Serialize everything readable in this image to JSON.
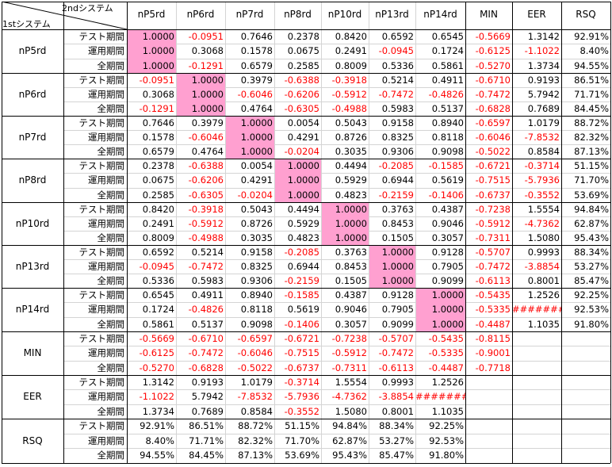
{
  "corner": {
    "second": "2ndシステム",
    "first": "1stシステム"
  },
  "columns": [
    "nP5rd",
    "nP6rd",
    "nP7rd",
    "nP8rd",
    "nP10rd",
    "nP13rd",
    "nP14rd",
    "MIN",
    "EER",
    "RSQ"
  ],
  "groups": [
    {
      "name": "nP5rd",
      "rows": [
        {
          "label": "テスト期間",
          "values": [
            "1.0000",
            "-0.0951",
            "0.7646",
            "0.2378",
            "0.8420",
            "0.6592",
            "0.6545",
            "-0.5669",
            "1.3142",
            "92.91%"
          ]
        },
        {
          "label": "運用期間",
          "values": [
            "1.0000",
            "0.3068",
            "0.1578",
            "0.0675",
            "0.2491",
            "-0.0945",
            "0.1724",
            "-0.6125",
            "-1.1022",
            "8.40%"
          ]
        },
        {
          "label": "全期間",
          "values": [
            "1.0000",
            "-0.1291",
            "0.6579",
            "0.2585",
            "0.8009",
            "0.5336",
            "0.5861",
            "-0.5270",
            "1.3734",
            "94.55%"
          ]
        }
      ]
    },
    {
      "name": "nP6rd",
      "rows": [
        {
          "label": "テスト期間",
          "values": [
            "-0.0951",
            "1.0000",
            "0.3979",
            "-0.6388",
            "-0.3918",
            "0.5214",
            "0.4911",
            "-0.6710",
            "0.9193",
            "86.51%"
          ]
        },
        {
          "label": "運用期間",
          "values": [
            "0.3068",
            "1.0000",
            "-0.6046",
            "-0.6206",
            "-0.5912",
            "-0.7472",
            "-0.4826",
            "-0.7472",
            "5.7942",
            "71.71%"
          ]
        },
        {
          "label": "全期間",
          "values": [
            "-0.1291",
            "1.0000",
            "0.4764",
            "-0.6305",
            "-0.4988",
            "0.5983",
            "0.5137",
            "-0.6828",
            "0.7689",
            "84.45%"
          ]
        }
      ]
    },
    {
      "name": "nP7rd",
      "rows": [
        {
          "label": "テスト期間",
          "values": [
            "0.7646",
            "0.3979",
            "1.0000",
            "0.0054",
            "0.5043",
            "0.9158",
            "0.8940",
            "-0.6597",
            "1.0179",
            "88.72%"
          ]
        },
        {
          "label": "運用期間",
          "values": [
            "0.1578",
            "-0.6046",
            "1.0000",
            "0.4291",
            "0.8726",
            "0.8325",
            "0.8118",
            "-0.6046",
            "-7.8532",
            "82.32%"
          ]
        },
        {
          "label": "全期間",
          "values": [
            "0.6579",
            "0.4764",
            "1.0000",
            "-0.0204",
            "0.3035",
            "0.9306",
            "0.9098",
            "-0.5022",
            "0.8584",
            "87.13%"
          ]
        }
      ]
    },
    {
      "name": "nP8rd",
      "rows": [
        {
          "label": "テスト期間",
          "values": [
            "0.2378",
            "-0.6388",
            "0.0054",
            "1.0000",
            "0.4494",
            "-0.2085",
            "-0.1585",
            "-0.6721",
            "-0.3714",
            "51.15%"
          ]
        },
        {
          "label": "運用期間",
          "values": [
            "0.0675",
            "-0.6206",
            "0.4291",
            "1.0000",
            "0.5929",
            "0.6944",
            "0.5619",
            "-0.7515",
            "-5.7936",
            "71.70%"
          ]
        },
        {
          "label": "全期間",
          "values": [
            "0.2585",
            "-0.6305",
            "-0.0204",
            "1.0000",
            "0.4823",
            "-0.2159",
            "-0.1406",
            "-0.6737",
            "-0.3552",
            "53.69%"
          ]
        }
      ]
    },
    {
      "name": "nP10rd",
      "rows": [
        {
          "label": "テスト期間",
          "values": [
            "0.8420",
            "-0.3918",
            "0.5043",
            "0.4494",
            "1.0000",
            "0.3763",
            "0.4387",
            "-0.7238",
            "1.5554",
            "94.84%"
          ]
        },
        {
          "label": "運用期間",
          "values": [
            "0.2491",
            "-0.5912",
            "0.8726",
            "0.5929",
            "1.0000",
            "0.8453",
            "0.9046",
            "-0.5912",
            "-4.7362",
            "62.87%"
          ]
        },
        {
          "label": "全期間",
          "values": [
            "0.8009",
            "-0.4988",
            "0.3035",
            "0.4823",
            "1.0000",
            "0.1505",
            "0.3057",
            "-0.7311",
            "1.5080",
            "95.43%"
          ]
        }
      ]
    },
    {
      "name": "nP13rd",
      "rows": [
        {
          "label": "テスト期間",
          "values": [
            "0.6592",
            "0.5214",
            "0.9158",
            "-0.2085",
            "0.3763",
            "1.0000",
            "0.9128",
            "-0.5707",
            "0.9993",
            "88.34%"
          ]
        },
        {
          "label": "運用期間",
          "values": [
            "-0.0945",
            "-0.7472",
            "0.8325",
            "0.6944",
            "0.8453",
            "1.0000",
            "0.7905",
            "-0.7472",
            "-3.8854",
            "53.27%"
          ]
        },
        {
          "label": "全期間",
          "values": [
            "0.5336",
            "0.5983",
            "0.9306",
            "-0.2159",
            "0.1505",
            "1.0000",
            "0.9099",
            "-0.6113",
            "0.8001",
            "85.47%"
          ]
        }
      ]
    },
    {
      "name": "nP14rd",
      "rows": [
        {
          "label": "テスト期間",
          "values": [
            "0.6545",
            "0.4911",
            "0.8940",
            "-0.1585",
            "0.4387",
            "0.9128",
            "1.0000",
            "-0.5435",
            "1.2526",
            "92.25%"
          ]
        },
        {
          "label": "運用期間",
          "values": [
            "0.1724",
            "-0.4826",
            "0.8118",
            "0.5619",
            "0.9046",
            "0.7905",
            "1.0000",
            "-0.5335",
            "#######",
            "92.53%"
          ]
        },
        {
          "label": "全期間",
          "values": [
            "0.5861",
            "0.5137",
            "0.9098",
            "-0.1406",
            "0.3057",
            "0.9099",
            "1.0000",
            "-0.4487",
            "1.1035",
            "91.80%"
          ]
        }
      ]
    },
    {
      "name": "MIN",
      "rows": [
        {
          "label": "テスト期間",
          "values": [
            "-0.5669",
            "-0.6710",
            "-0.6597",
            "-0.6721",
            "-0.7238",
            "-0.5707",
            "-0.5435",
            "-0.8115",
            "",
            ""
          ]
        },
        {
          "label": "運用期間",
          "values": [
            "-0.6125",
            "-0.7472",
            "-0.6046",
            "-0.7515",
            "-0.5912",
            "-0.7472",
            "-0.5335",
            "-0.9001",
            "",
            ""
          ]
        },
        {
          "label": "全期間",
          "values": [
            "-0.5270",
            "-0.6828",
            "-0.5022",
            "-0.6737",
            "-0.7311",
            "-0.6113",
            "-0.4487",
            "-0.7718",
            "",
            ""
          ]
        }
      ]
    },
    {
      "name": "EER",
      "rows": [
        {
          "label": "テスト期間",
          "values": [
            "1.3142",
            "0.9193",
            "1.0179",
            "-0.3714",
            "1.5554",
            "0.9993",
            "1.2526",
            "",
            "",
            ""
          ]
        },
        {
          "label": "運用期間",
          "values": [
            "-1.1022",
            "5.7942",
            "-7.8532",
            "-5.7936",
            "-4.7362",
            "-3.8854",
            "#######",
            "",
            "",
            ""
          ]
        },
        {
          "label": "全期間",
          "values": [
            "1.3734",
            "0.7689",
            "0.8584",
            "-0.3552",
            "1.5080",
            "0.8001",
            "1.1035",
            "",
            "",
            ""
          ]
        }
      ]
    },
    {
      "name": "RSQ",
      "rows": [
        {
          "label": "テスト期間",
          "values": [
            "92.91%",
            "86.51%",
            "88.72%",
            "51.15%",
            "94.84%",
            "88.34%",
            "92.25%",
            "",
            "",
            ""
          ]
        },
        {
          "label": "運用期間",
          "values": [
            "8.40%",
            "71.71%",
            "82.32%",
            "71.70%",
            "62.87%",
            "53.27%",
            "92.53%",
            "",
            "",
            ""
          ]
        },
        {
          "label": "全期間",
          "values": [
            "94.55%",
            "84.45%",
            "87.13%",
            "53.69%",
            "95.43%",
            "85.47%",
            "91.80%",
            "",
            "",
            ""
          ]
        }
      ]
    }
  ],
  "colors": {
    "diagonal": "#ffa0d0",
    "negative": "#ff0000",
    "text": "#000000"
  }
}
